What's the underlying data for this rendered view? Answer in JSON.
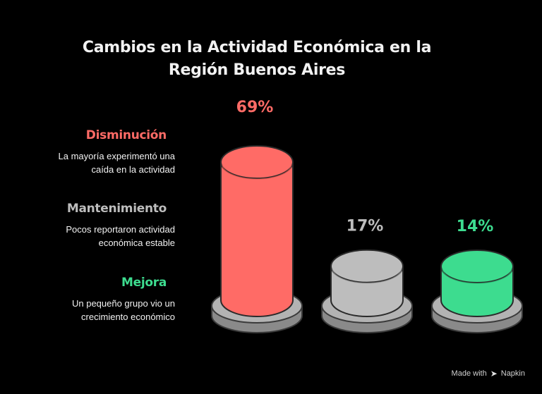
{
  "chart_data": {
    "type": "bar",
    "title_line1": "Cambios en la Actividad Económica en la",
    "title_line2": "Región Buenos Aires",
    "categories": [
      "Disminución",
      "Mantenimiento",
      "Mejora"
    ],
    "values": [
      69,
      17,
      14
    ],
    "value_labels": [
      "69%",
      "17%",
      "14%"
    ],
    "descriptions_line1": [
      "La mayoría experimentó una",
      "Pocos reportaron actividad",
      "Un pequeño grupo vio un"
    ],
    "descriptions_line2": [
      "caída en la actividad",
      "económica estable",
      "crecimiento económico"
    ],
    "colors": [
      "#ff6b66",
      "#bdbdbd",
      "#3ddc8f"
    ],
    "ylim": [
      0,
      100
    ]
  },
  "watermark": {
    "text": "Made with",
    "brand": "Napkin",
    "icon": "napkin-logo-icon"
  }
}
